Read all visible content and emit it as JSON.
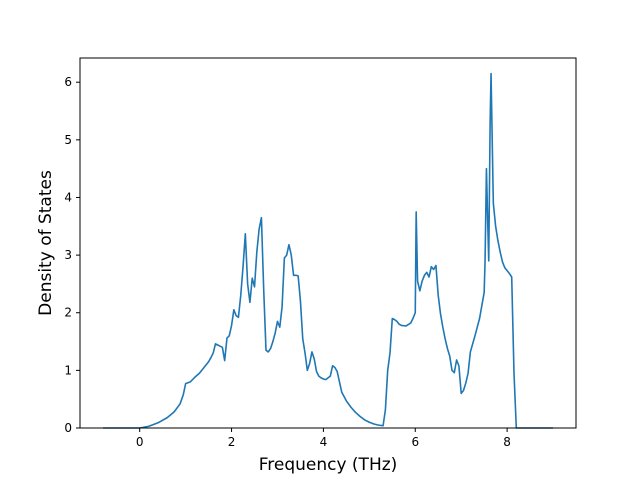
{
  "chart_data": {
    "type": "line",
    "title": "",
    "xlabel": "Frequency (THz)",
    "ylabel": "Density of States",
    "xlim": [
      -1.3,
      9.5
    ],
    "ylim": [
      0,
      6.42
    ],
    "xticks": [
      0,
      2,
      4,
      6,
      8
    ],
    "yticks": [
      0,
      1,
      2,
      3,
      4,
      5,
      6
    ],
    "grid": false,
    "legend": "none",
    "colors": {
      "line": "#1f77b4",
      "axes": "#000000",
      "background": "#ffffff"
    },
    "series": [
      {
        "x": [
          -0.8,
          -0.4,
          0.0,
          0.2,
          0.4,
          0.6,
          0.75,
          0.88,
          0.95,
          1.0,
          1.1,
          1.2,
          1.3,
          1.4,
          1.5,
          1.55,
          1.6,
          1.65,
          1.7,
          1.75,
          1.8,
          1.85,
          1.9,
          1.95,
          2.0,
          2.05,
          2.1,
          2.15,
          2.2,
          2.25,
          2.3,
          2.35,
          2.4,
          2.45,
          2.5,
          2.55,
          2.6,
          2.65,
          2.7,
          2.75,
          2.8,
          2.85,
          2.9,
          2.95,
          3.0,
          3.05,
          3.1,
          3.15,
          3.2,
          3.25,
          3.3,
          3.35,
          3.4,
          3.45,
          3.5,
          3.55,
          3.6,
          3.65,
          3.7,
          3.75,
          3.8,
          3.85,
          3.9,
          3.95,
          4.0,
          4.05,
          4.1,
          4.15,
          4.2,
          4.25,
          4.3,
          4.35,
          4.4,
          4.5,
          4.6,
          4.7,
          4.8,
          4.9,
          5.0,
          5.1,
          5.2,
          5.3,
          5.35,
          5.4,
          5.45,
          5.5,
          5.55,
          5.6,
          5.65,
          5.7,
          5.8,
          5.9,
          5.95,
          6.0,
          6.02,
          6.05,
          6.1,
          6.15,
          6.2,
          6.25,
          6.3,
          6.35,
          6.4,
          6.45,
          6.5,
          6.55,
          6.6,
          6.65,
          6.7,
          6.75,
          6.8,
          6.85,
          6.9,
          6.95,
          7.0,
          7.05,
          7.1,
          7.15,
          7.2,
          7.3,
          7.4,
          7.5,
          7.52,
          7.55,
          7.58,
          7.6,
          7.63,
          7.65,
          7.7,
          7.75,
          7.8,
          7.85,
          7.9,
          7.95,
          8.0,
          8.05,
          8.1,
          8.15,
          8.2,
          8.5,
          9.0
        ],
        "y": [
          0.0,
          0.0,
          0.0,
          0.03,
          0.09,
          0.18,
          0.28,
          0.42,
          0.58,
          0.77,
          0.8,
          0.88,
          0.95,
          1.05,
          1.15,
          1.22,
          1.3,
          1.46,
          1.44,
          1.42,
          1.4,
          1.17,
          1.56,
          1.6,
          1.78,
          2.05,
          1.95,
          1.92,
          2.3,
          2.8,
          3.37,
          2.5,
          2.18,
          2.6,
          2.45,
          3.05,
          3.45,
          3.65,
          2.4,
          1.35,
          1.32,
          1.38,
          1.5,
          1.65,
          1.85,
          1.75,
          2.1,
          2.95,
          3.0,
          3.18,
          3.0,
          2.65,
          2.65,
          2.64,
          2.2,
          1.55,
          1.3,
          1.0,
          1.12,
          1.32,
          1.2,
          0.98,
          0.9,
          0.87,
          0.85,
          0.84,
          0.87,
          0.9,
          1.08,
          1.05,
          0.98,
          0.8,
          0.62,
          0.47,
          0.36,
          0.27,
          0.2,
          0.14,
          0.1,
          0.07,
          0.05,
          0.04,
          0.32,
          1.0,
          1.3,
          1.9,
          1.88,
          1.85,
          1.8,
          1.78,
          1.77,
          1.82,
          1.9,
          2.0,
          3.75,
          2.55,
          2.38,
          2.55,
          2.65,
          2.7,
          2.62,
          2.8,
          2.75,
          2.82,
          2.3,
          1.98,
          1.75,
          1.55,
          1.38,
          1.25,
          1.0,
          0.96,
          1.18,
          1.08,
          0.6,
          0.65,
          0.78,
          0.95,
          1.32,
          1.6,
          1.9,
          2.35,
          2.9,
          4.5,
          3.5,
          2.9,
          5.3,
          6.15,
          3.9,
          3.5,
          3.25,
          3.05,
          2.88,
          2.78,
          2.73,
          2.68,
          2.62,
          0.95,
          0.0,
          0.0,
          0.0
        ]
      }
    ]
  }
}
